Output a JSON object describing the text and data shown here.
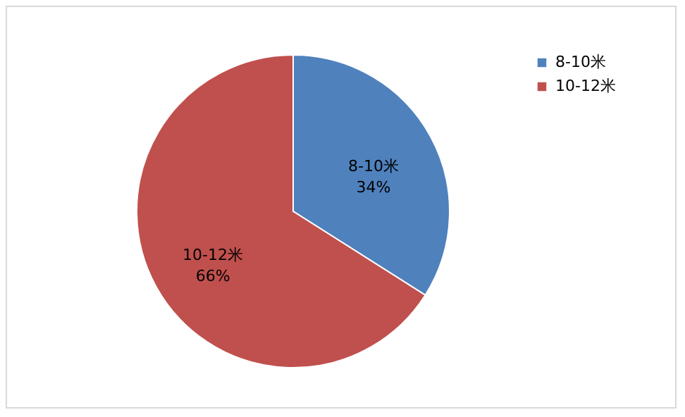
{
  "chart_data": {
    "type": "pie",
    "categories": [
      "8-10米",
      "10-12米"
    ],
    "values": [
      34,
      66
    ],
    "colors": [
      "#4f81bd",
      "#c0504d"
    ],
    "value_labels": [
      "34%",
      "66%"
    ],
    "legend": "right"
  }
}
